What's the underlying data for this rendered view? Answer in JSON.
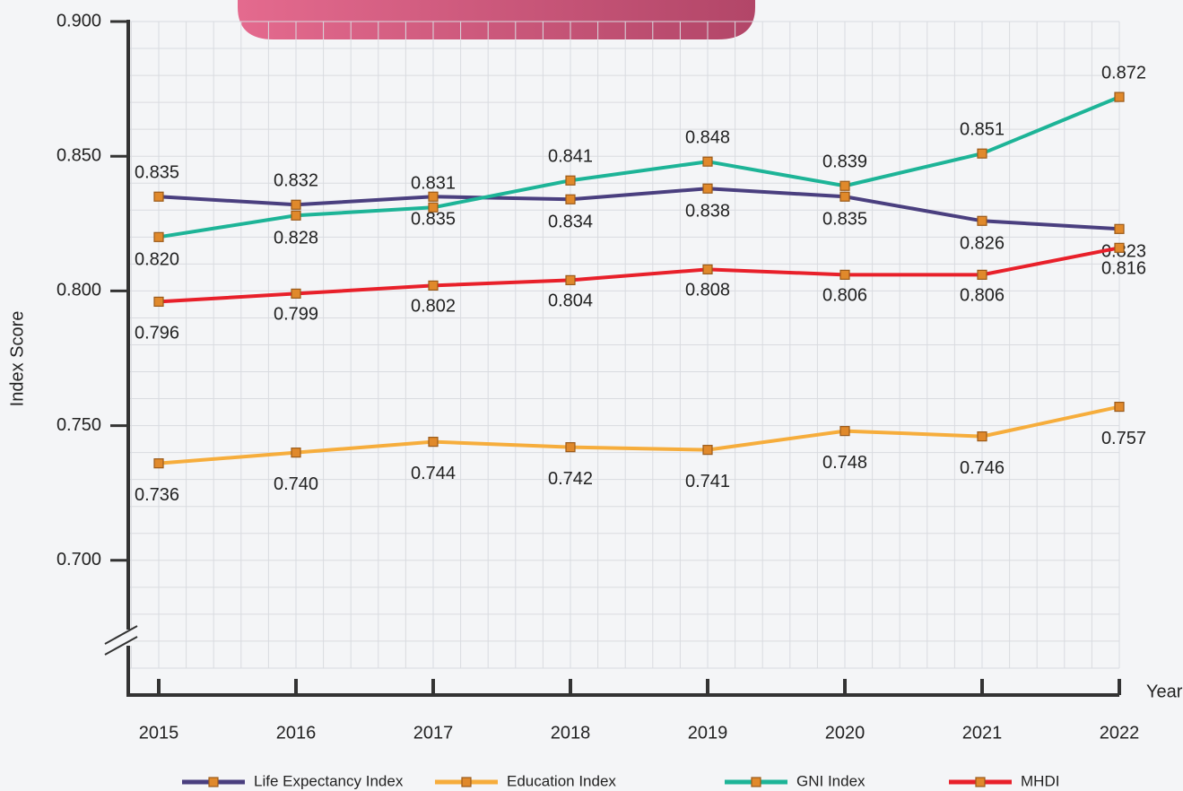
{
  "chart_data": {
    "type": "line",
    "y_label": "Index Score",
    "x_label": "Year",
    "categories": [
      "2015",
      "2016",
      "2017",
      "2018",
      "2019",
      "2020",
      "2021",
      "2022"
    ],
    "ylim": [
      0.65,
      0.9
    ],
    "yticks": [
      {
        "value": 0.7,
        "label": "0.700"
      },
      {
        "value": 0.75,
        "label": "0.750"
      },
      {
        "value": 0.8,
        "label": "0.800"
      },
      {
        "value": 0.85,
        "label": "0.850"
      },
      {
        "value": 0.9,
        "label": "0.900"
      }
    ],
    "grid": true,
    "legend": "bottom",
    "marker_color": "#e0892b",
    "series": [
      {
        "name": "Life Expectancy Index",
        "color": "#4a3f7f",
        "values": [
          0.835,
          0.832,
          0.835,
          0.834,
          0.838,
          0.835,
          0.826,
          0.823
        ],
        "value_labels": [
          "0.835",
          "0.832",
          "0.835",
          "0.834",
          "0.838",
          "0.835",
          "0.826",
          "0.823"
        ]
      },
      {
        "name": "Education Index",
        "color": "#f6ad3c",
        "values": [
          0.736,
          0.74,
          0.744,
          0.742,
          0.741,
          0.748,
          0.746,
          0.757
        ],
        "value_labels": [
          "0.736",
          "0.740",
          "0.744",
          "0.742",
          "0.741",
          "0.748",
          "0.746",
          "0.757"
        ]
      },
      {
        "name": "GNI Index",
        "color": "#1db497",
        "values": [
          0.82,
          0.828,
          0.831,
          0.841,
          0.848,
          0.839,
          0.851,
          0.872
        ],
        "value_labels": [
          "0.820",
          "0.828",
          "0.831",
          "0.841",
          "0.848",
          "0.839",
          "0.851",
          "0.872"
        ]
      },
      {
        "name": "MHDI",
        "color": "#e8202a",
        "values": [
          0.796,
          0.799,
          0.802,
          0.804,
          0.808,
          0.806,
          0.806,
          0.816
        ],
        "value_labels": [
          "0.796",
          "0.799",
          "0.802",
          "0.804",
          "0.808",
          "0.806",
          "0.806",
          "0.816"
        ]
      }
    ]
  }
}
